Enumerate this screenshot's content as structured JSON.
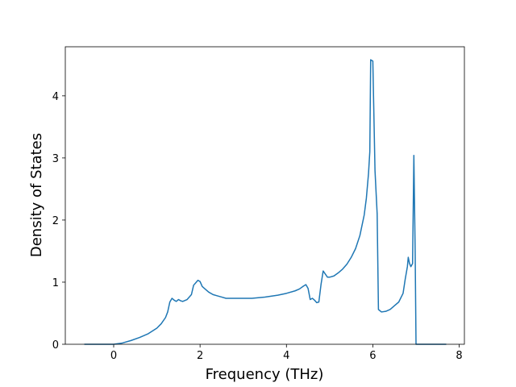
{
  "chart_data": {
    "type": "line",
    "xlabel": "Frequency (THz)",
    "ylabel": "Density of States",
    "xlim": [
      -1.12,
      8.12
    ],
    "ylim": [
      0,
      4.79
    ],
    "xticks": [
      0,
      2,
      4,
      6,
      8
    ],
    "yticks": [
      0,
      1,
      2,
      3,
      4
    ],
    "series": [
      {
        "color": "#1f77b4",
        "x": [
          -0.68,
          0,
          0.2,
          0.4,
          0.6,
          0.8,
          1.0,
          1.1,
          1.2,
          1.25,
          1.3,
          1.35,
          1.4,
          1.45,
          1.5,
          1.55,
          1.6,
          1.7,
          1.8,
          1.85,
          1.9,
          1.95,
          2.0,
          2.05,
          2.1,
          2.2,
          2.3,
          2.4,
          2.5,
          2.6,
          2.7,
          3.0,
          3.2,
          3.5,
          3.8,
          4.0,
          4.2,
          4.3,
          4.4,
          4.45,
          4.5,
          4.55,
          4.6,
          4.65,
          4.7,
          4.75,
          4.8,
          4.85,
          4.9,
          4.95,
          5.0,
          5.1,
          5.2,
          5.3,
          5.4,
          5.5,
          5.6,
          5.7,
          5.8,
          5.85,
          5.9,
          5.93,
          5.95,
          6.0,
          6.03,
          6.05,
          6.1,
          6.13,
          6.2,
          6.3,
          6.4,
          6.5,
          6.6,
          6.7,
          6.75,
          6.8,
          6.82,
          6.85,
          6.88,
          6.92,
          6.95,
          6.98,
          7.0,
          7.7
        ],
        "values": [
          0,
          0,
          0.02,
          0.06,
          0.11,
          0.17,
          0.26,
          0.33,
          0.43,
          0.52,
          0.68,
          0.74,
          0.71,
          0.69,
          0.72,
          0.7,
          0.69,
          0.72,
          0.8,
          0.95,
          0.99,
          1.03,
          1.01,
          0.93,
          0.9,
          0.84,
          0.8,
          0.78,
          0.76,
          0.74,
          0.74,
          0.74,
          0.74,
          0.76,
          0.79,
          0.82,
          0.86,
          0.89,
          0.94,
          0.96,
          0.9,
          0.72,
          0.74,
          0.71,
          0.67,
          0.68,
          0.96,
          1.18,
          1.13,
          1.08,
          1.08,
          1.1,
          1.15,
          1.21,
          1.29,
          1.4,
          1.54,
          1.75,
          2.08,
          2.35,
          2.75,
          3.1,
          4.58,
          4.56,
          3.5,
          2.8,
          2.1,
          0.56,
          0.52,
          0.53,
          0.56,
          0.62,
          0.68,
          0.82,
          1.05,
          1.25,
          1.4,
          1.3,
          1.25,
          1.3,
          3.04,
          1.5,
          0,
          0
        ]
      }
    ]
  }
}
